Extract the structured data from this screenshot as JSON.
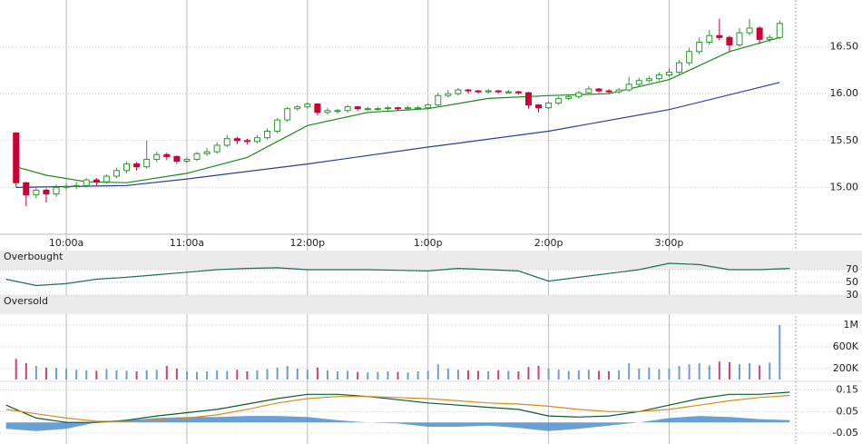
{
  "chart_data": [
    {
      "type": "candlestick",
      "x": [
        575,
        580,
        585,
        590,
        595,
        600,
        605,
        610,
        615,
        620,
        625,
        630,
        635,
        640,
        645,
        650,
        655,
        660,
        665,
        670,
        675,
        680,
        685,
        690,
        695,
        700,
        705,
        710,
        715,
        720,
        725,
        730,
        735,
        740,
        745,
        750,
        755,
        760,
        765,
        770,
        775,
        780,
        785,
        790,
        795,
        800,
        805,
        810,
        815,
        820,
        825,
        830,
        835,
        840,
        845,
        850,
        855,
        860,
        865,
        870,
        875,
        880,
        885,
        890,
        895,
        900,
        905,
        910,
        915,
        920,
        925,
        930,
        935,
        940,
        945,
        950,
        955
      ],
      "open": [
        15.58,
        15.05,
        14.92,
        14.97,
        14.93,
        15.0,
        15.01,
        15.02,
        15.08,
        15.06,
        15.12,
        15.18,
        15.25,
        15.22,
        15.3,
        15.35,
        15.33,
        15.28,
        15.3,
        15.36,
        15.38,
        15.45,
        15.52,
        15.5,
        15.49,
        15.53,
        15.6,
        15.72,
        15.84,
        15.86,
        15.89,
        15.8,
        15.82,
        15.82,
        15.86,
        15.84,
        15.84,
        15.84,
        15.85,
        15.84,
        15.85,
        15.85,
        15.88,
        15.98,
        16.0,
        16.04,
        16.03,
        16.02,
        16.03,
        16.02,
        16.02,
        16.01,
        15.88,
        15.85,
        15.9,
        15.95,
        15.97,
        16.01,
        16.05,
        16.03,
        16.02,
        16.04,
        16.1,
        16.14,
        16.16,
        16.2,
        16.23,
        16.33,
        16.45,
        16.55,
        16.62,
        16.6,
        16.52,
        16.65,
        16.7,
        16.58,
        16.6
      ],
      "high": [
        15.59,
        15.06,
        15.0,
        14.99,
        15.03,
        15.04,
        15.06,
        15.1,
        15.1,
        15.14,
        15.21,
        15.28,
        15.27,
        15.5,
        15.38,
        15.37,
        15.34,
        15.32,
        15.38,
        15.42,
        15.48,
        15.56,
        15.54,
        15.52,
        15.56,
        15.63,
        15.74,
        15.86,
        15.88,
        15.91,
        15.9,
        15.85,
        15.84,
        15.88,
        15.87,
        15.86,
        15.86,
        15.87,
        15.86,
        15.87,
        15.87,
        15.9,
        16.01,
        16.04,
        16.06,
        16.05,
        16.04,
        16.05,
        16.04,
        16.04,
        16.03,
        16.02,
        15.89,
        15.92,
        15.97,
        15.99,
        16.03,
        16.08,
        16.06,
        16.05,
        16.06,
        16.18,
        16.17,
        16.19,
        16.23,
        16.27,
        16.36,
        16.49,
        16.6,
        16.68,
        16.8,
        16.62,
        16.7,
        16.8,
        16.72,
        16.63,
        16.78
      ],
      "low": [
        15.0,
        14.8,
        14.88,
        14.84,
        14.9,
        14.97,
        14.98,
        15.0,
        15.02,
        15.04,
        15.1,
        15.15,
        15.18,
        15.2,
        15.27,
        15.29,
        15.25,
        15.26,
        15.28,
        15.34,
        15.36,
        15.43,
        15.46,
        15.46,
        15.47,
        15.51,
        15.58,
        15.7,
        15.82,
        15.84,
        15.77,
        15.78,
        15.79,
        15.8,
        15.82,
        15.82,
        15.82,
        15.82,
        15.82,
        15.82,
        15.83,
        15.83,
        15.86,
        15.96,
        15.98,
        16.0,
        16.0,
        16.0,
        16.0,
        16.0,
        15.99,
        15.84,
        15.8,
        15.83,
        15.88,
        15.93,
        15.95,
        15.99,
        16.01,
        16.0,
        16.0,
        16.02,
        16.08,
        16.12,
        16.14,
        16.18,
        16.21,
        16.3,
        16.42,
        16.52,
        16.57,
        16.45,
        16.5,
        16.62,
        16.53,
        16.55,
        16.58
      ],
      "close": [
        15.05,
        14.92,
        14.97,
        14.93,
        15.0,
        15.01,
        15.02,
        15.08,
        15.06,
        15.12,
        15.18,
        15.25,
        15.22,
        15.3,
        15.35,
        15.33,
        15.28,
        15.3,
        15.36,
        15.38,
        15.45,
        15.52,
        15.5,
        15.49,
        15.53,
        15.6,
        15.72,
        15.84,
        15.86,
        15.89,
        15.8,
        15.82,
        15.82,
        15.86,
        15.84,
        15.84,
        15.84,
        15.85,
        15.84,
        15.85,
        15.85,
        15.88,
        15.98,
        16.0,
        16.04,
        16.03,
        16.02,
        16.03,
        16.02,
        16.02,
        16.01,
        15.88,
        15.85,
        15.9,
        15.95,
        15.97,
        16.01,
        16.05,
        16.03,
        16.02,
        16.04,
        16.1,
        16.14,
        16.16,
        16.2,
        16.23,
        16.33,
        16.45,
        16.55,
        16.62,
        16.6,
        16.52,
        16.65,
        16.7,
        16.58,
        16.6,
        16.75
      ],
      "up_color": "#2a9a2a",
      "down_color": "#cc0033",
      "overlays": [
        {
          "color": "#1a8a1a",
          "x": [
            575,
            590,
            610,
            630,
            660,
            690,
            720,
            750,
            780,
            810,
            840,
            870,
            900,
            930,
            955
          ],
          "values": [
            15.22,
            15.13,
            15.06,
            15.05,
            15.15,
            15.32,
            15.66,
            15.8,
            15.84,
            15.95,
            15.98,
            16.0,
            16.15,
            16.45,
            16.6
          ]
        },
        {
          "color": "#2a3f9a",
          "x": [
            575,
            630,
            660,
            720,
            780,
            840,
            900,
            955
          ],
          "values": [
            15.0,
            15.02,
            15.09,
            15.25,
            15.43,
            15.6,
            15.83,
            16.12
          ]
        }
      ],
      "xlim": [
        567,
        963
      ],
      "xticks": [
        {
          "value": 600,
          "label": "10:00a"
        },
        {
          "value": 660,
          "label": "11:00a"
        },
        {
          "value": 720,
          "label": "12:00p"
        },
        {
          "value": 780,
          "label": "1:00p"
        },
        {
          "value": 840,
          "label": "2:00p"
        },
        {
          "value": 900,
          "label": "3:00p"
        }
      ],
      "ylim": [
        14.5,
        17.0
      ],
      "yticks": [
        {
          "value": 16.5,
          "label": "16.50"
        },
        {
          "value": 16,
          "label": "16.00"
        },
        {
          "value": 15.5,
          "label": "15.50"
        },
        {
          "value": 15,
          "label": "15.00"
        }
      ],
      "grid": true
    },
    {
      "type": "line",
      "annotations": [
        "Overbought",
        "Oversold"
      ],
      "bands": [
        [
          70,
          100
        ],
        [
          0,
          30
        ]
      ],
      "x": [
        570,
        585,
        600,
        615,
        630,
        645,
        660,
        675,
        690,
        705,
        720,
        735,
        750,
        765,
        780,
        795,
        810,
        825,
        840,
        855,
        870,
        885,
        900,
        915,
        930,
        945,
        960
      ],
      "series": [
        {
          "color": "#1f6f4f",
          "values": [
            55,
            45,
            48,
            55,
            58,
            62,
            66,
            70,
            72,
            73,
            70,
            70,
            70,
            69,
            68,
            72,
            70,
            68,
            52,
            58,
            64,
            70,
            80,
            78,
            70,
            70,
            72
          ]
        }
      ],
      "ylim": [
        0,
        100
      ],
      "yticks": [
        70,
        50,
        30
      ],
      "grid": true
    },
    {
      "type": "bar",
      "x": [
        575,
        580,
        585,
        590,
        595,
        600,
        605,
        610,
        615,
        620,
        625,
        630,
        635,
        640,
        645,
        650,
        655,
        660,
        665,
        670,
        675,
        680,
        685,
        690,
        695,
        700,
        705,
        710,
        715,
        720,
        725,
        730,
        735,
        740,
        745,
        750,
        755,
        760,
        765,
        770,
        775,
        780,
        785,
        790,
        795,
        800,
        805,
        810,
        815,
        820,
        825,
        830,
        835,
        840,
        845,
        850,
        855,
        860,
        865,
        870,
        875,
        880,
        885,
        890,
        895,
        900,
        905,
        910,
        915,
        920,
        925,
        930,
        935,
        940,
        945,
        950,
        955
      ],
      "values": [
        380000,
        300000,
        250000,
        220000,
        210000,
        200000,
        180000,
        170000,
        160000,
        190000,
        170000,
        160000,
        150000,
        170000,
        180000,
        250000,
        200000,
        150000,
        140000,
        150000,
        170000,
        160000,
        180000,
        150000,
        170000,
        190000,
        220000,
        250000,
        200000,
        180000,
        220000,
        170000,
        150000,
        160000,
        140000,
        130000,
        140000,
        150000,
        140000,
        130000,
        150000,
        160000,
        280000,
        200000,
        180000,
        170000,
        160000,
        150000,
        170000,
        160000,
        150000,
        230000,
        250000,
        200000,
        180000,
        160000,
        170000,
        180000,
        160000,
        150000,
        170000,
        300000,
        200000,
        220000,
        190000,
        200000,
        250000,
        280000,
        300000,
        260000,
        330000,
        320000,
        280000,
        300000,
        260000,
        310000,
        1000000
      ],
      "up_color": "#6a9fd8",
      "down_color": "#d04070",
      "ylim": [
        0,
        1100000
      ],
      "yticks": [
        {
          "value": 1000000,
          "label": "1M"
        },
        {
          "value": 600000,
          "label": "600K"
        },
        {
          "value": 200000,
          "label": "200K"
        }
      ],
      "grid": true
    },
    {
      "type": "line",
      "x": [
        570,
        585,
        600,
        615,
        630,
        645,
        660,
        675,
        690,
        705,
        720,
        735,
        750,
        765,
        780,
        795,
        810,
        825,
        840,
        855,
        870,
        885,
        900,
        915,
        930,
        945,
        960
      ],
      "series": [
        {
          "type": "area",
          "color": "#4f8fd0",
          "values": [
            -0.03,
            -0.04,
            -0.03,
            0.0,
            0.01,
            0.02,
            0.025,
            0.025,
            0.03,
            0.03,
            0.025,
            0.01,
            0.0,
            -0.005,
            -0.02,
            -0.02,
            -0.015,
            -0.025,
            -0.04,
            -0.03,
            -0.015,
            0.0,
            0.02,
            0.03,
            0.025,
            0.015,
            0.01
          ]
        },
        {
          "color": "#0b5e2b",
          "values": [
            0.08,
            0.02,
            0.0,
            0.0,
            0.01,
            0.03,
            0.045,
            0.06,
            0.085,
            0.11,
            0.13,
            0.13,
            0.12,
            0.105,
            0.09,
            0.08,
            0.07,
            0.06,
            0.03,
            0.025,
            0.03,
            0.05,
            0.08,
            0.11,
            0.13,
            0.13,
            0.14
          ]
        },
        {
          "color": "#d98c1a",
          "values": [
            0.06,
            0.04,
            0.02,
            0.005,
            0.005,
            0.01,
            0.02,
            0.035,
            0.06,
            0.09,
            0.11,
            0.12,
            0.12,
            0.115,
            0.11,
            0.1,
            0.09,
            0.085,
            0.075,
            0.06,
            0.05,
            0.05,
            0.06,
            0.08,
            0.1,
            0.115,
            0.125
          ]
        }
      ],
      "ylim": [
        -0.1,
        0.19
      ],
      "yticks": [
        0.15,
        0.05,
        -0.05
      ],
      "grid": true
    }
  ]
}
